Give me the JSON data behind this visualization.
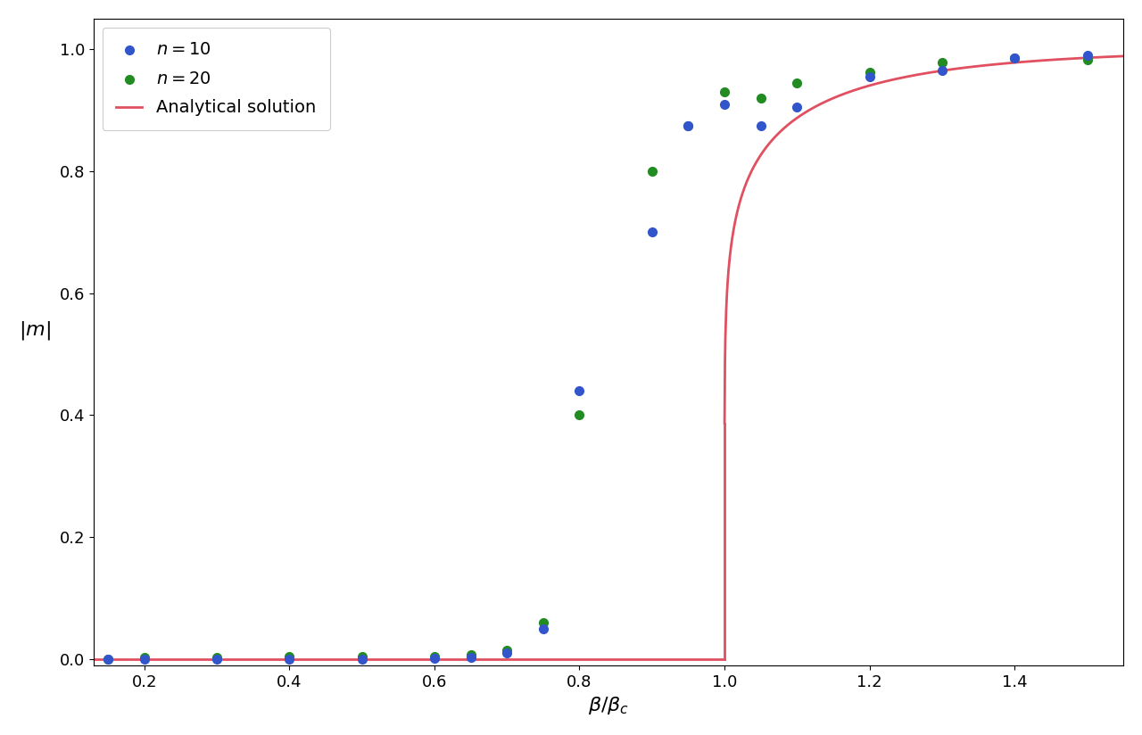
{
  "n10_x": [
    0.15,
    0.2,
    0.3,
    0.4,
    0.5,
    0.6,
    0.65,
    0.7,
    0.75,
    0.8,
    0.9,
    0.95,
    1.0,
    1.05,
    1.1,
    1.2,
    1.3,
    1.4,
    1.5
  ],
  "n10_y": [
    0.0,
    0.0,
    0.0,
    0.0,
    0.0,
    0.002,
    0.003,
    0.01,
    0.05,
    0.44,
    0.7,
    0.875,
    0.91,
    0.875,
    0.905,
    0.955,
    0.965,
    0.985,
    0.99
  ],
  "n20_x": [
    0.15,
    0.2,
    0.3,
    0.4,
    0.5,
    0.6,
    0.65,
    0.7,
    0.75,
    0.8,
    0.9,
    0.95,
    1.0,
    1.05,
    1.1,
    1.2,
    1.3,
    1.4,
    1.5
  ],
  "n20_y": [
    0.0,
    0.003,
    0.003,
    0.005,
    0.005,
    0.005,
    0.008,
    0.015,
    0.06,
    0.4,
    0.8,
    0.875,
    0.93,
    0.92,
    0.945,
    0.962,
    0.978,
    0.985,
    0.983
  ],
  "color_n10": "#3355cc",
  "color_n20": "#228B22",
  "color_line": "#e05060",
  "xlabel": "$\\beta/\\beta_c$",
  "ylabel": "$|m|$",
  "xlim": [
    0.13,
    1.55
  ],
  "ylim": [
    -0.01,
    1.05
  ],
  "xticks": [
    0.2,
    0.4,
    0.6,
    0.8,
    1.0,
    1.2,
    1.4
  ],
  "yticks": [
    0.0,
    0.2,
    0.4,
    0.6,
    0.8,
    1.0
  ],
  "markersize": 7,
  "linewidth": 2.0,
  "legend_labels": [
    "$n = 10$",
    "$n = 20$",
    "Analytical solution"
  ],
  "figsize": [
    12.8,
    8.24
  ],
  "dpi": 100
}
